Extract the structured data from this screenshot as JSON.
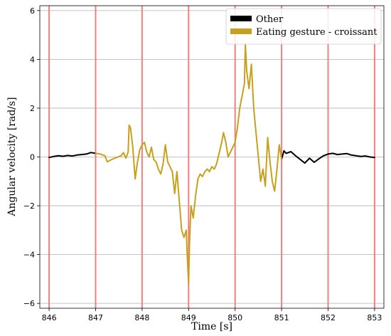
{
  "chart_data": {
    "type": "line",
    "title": "",
    "xlabel": "Time [s]",
    "ylabel": "Angular velocity [rad/s]",
    "xlim": [
      845.8,
      853.2
    ],
    "ylim": [
      -6.2,
      6.2
    ],
    "xticks": [
      846,
      847,
      848,
      849,
      850,
      851,
      852,
      853
    ],
    "yticks": [
      -6,
      -4,
      -2,
      0,
      2,
      4,
      6
    ],
    "xtick_labels": [
      "846",
      "847",
      "848",
      "849",
      "850",
      "851",
      "852",
      "853"
    ],
    "ytick_labels": [
      "−6",
      "−4",
      "−2",
      "0",
      "2",
      "4",
      "6"
    ],
    "grid": "horizontal",
    "legend_position": "top-right",
    "vertical_markers": [
      846,
      847,
      848,
      849,
      850,
      851,
      852,
      853
    ],
    "series": [
      {
        "name": "Other",
        "color": "#000000",
        "segments": [
          [
            [
              846.0,
              -0.02
            ],
            [
              846.1,
              0.02
            ],
            [
              846.2,
              0.05
            ],
            [
              846.3,
              0.03
            ],
            [
              846.4,
              0.06
            ],
            [
              846.5,
              0.04
            ],
            [
              846.6,
              0.08
            ],
            [
              846.7,
              0.1
            ],
            [
              846.8,
              0.12
            ],
            [
              846.9,
              0.18
            ],
            [
              847.0,
              0.15
            ]
          ],
          [
            [
              851.0,
              -0.1
            ],
            [
              851.05,
              0.25
            ],
            [
              851.1,
              0.15
            ],
            [
              851.2,
              0.22
            ],
            [
              851.3,
              0.05
            ],
            [
              851.4,
              -0.1
            ],
            [
              851.5,
              -0.25
            ],
            [
              851.6,
              -0.05
            ],
            [
              851.7,
              -0.22
            ],
            [
              851.8,
              -0.08
            ],
            [
              851.9,
              0.05
            ],
            [
              852.0,
              0.12
            ],
            [
              852.1,
              0.15
            ],
            [
              852.2,
              0.1
            ],
            [
              852.3,
              0.12
            ],
            [
              852.4,
              0.14
            ],
            [
              852.5,
              0.08
            ],
            [
              852.6,
              0.05
            ],
            [
              852.7,
              0.02
            ],
            [
              852.8,
              0.04
            ],
            [
              852.9,
              0.0
            ],
            [
              853.0,
              -0.02
            ]
          ]
        ]
      },
      {
        "name": "Eating gesture - croissant",
        "color": "#C8A020",
        "segments": [
          [
            [
              847.0,
              0.15
            ],
            [
              847.1,
              0.12
            ],
            [
              847.2,
              0.05
            ],
            [
              847.25,
              -0.2
            ],
            [
              847.35,
              -0.1
            ],
            [
              847.45,
              -0.02
            ],
            [
              847.55,
              0.05
            ],
            [
              847.6,
              0.18
            ],
            [
              847.65,
              -0.05
            ],
            [
              847.7,
              0.2
            ],
            [
              847.72,
              1.3
            ],
            [
              847.75,
              1.2
            ],
            [
              847.8,
              0.4
            ],
            [
              847.85,
              -0.9
            ],
            [
              847.9,
              -0.2
            ],
            [
              847.95,
              0.3
            ],
            [
              848.0,
              0.5
            ],
            [
              848.05,
              0.6
            ],
            [
              848.1,
              0.2
            ],
            [
              848.15,
              0.0
            ],
            [
              848.2,
              0.4
            ],
            [
              848.25,
              -0.1
            ],
            [
              848.3,
              -0.2
            ],
            [
              848.35,
              -0.5
            ],
            [
              848.4,
              -0.7
            ],
            [
              848.45,
              -0.3
            ],
            [
              848.5,
              0.5
            ],
            [
              848.55,
              -0.2
            ],
            [
              848.6,
              -0.4
            ],
            [
              848.65,
              -0.6
            ],
            [
              848.7,
              -1.5
            ],
            [
              848.75,
              -0.6
            ],
            [
              848.8,
              -1.8
            ],
            [
              848.85,
              -3.0
            ],
            [
              848.9,
              -3.3
            ],
            [
              848.95,
              -3.0
            ],
            [
              848.97,
              -4.0
            ],
            [
              849.0,
              -5.2
            ],
            [
              849.02,
              -3.5
            ],
            [
              849.05,
              -2.0
            ],
            [
              849.1,
              -2.5
            ],
            [
              849.15,
              -1.6
            ],
            [
              849.2,
              -0.9
            ],
            [
              849.25,
              -0.7
            ],
            [
              849.3,
              -0.8
            ],
            [
              849.35,
              -0.6
            ],
            [
              849.4,
              -0.5
            ],
            [
              849.45,
              -0.6
            ],
            [
              849.5,
              -0.4
            ],
            [
              849.55,
              -0.5
            ],
            [
              849.6,
              -0.3
            ],
            [
              849.65,
              0.1
            ],
            [
              849.7,
              0.5
            ],
            [
              849.75,
              1.0
            ],
            [
              849.8,
              0.6
            ],
            [
              849.85,
              0.0
            ],
            [
              849.9,
              0.2
            ],
            [
              849.95,
              0.4
            ],
            [
              850.0,
              0.6
            ],
            [
              850.05,
              1.2
            ],
            [
              850.1,
              2.0
            ],
            [
              850.15,
              2.5
            ],
            [
              850.2,
              3.0
            ],
            [
              850.22,
              4.6
            ],
            [
              850.25,
              3.5
            ],
            [
              850.3,
              2.8
            ],
            [
              850.35,
              3.8
            ],
            [
              850.4,
              2.0
            ],
            [
              850.45,
              1.0
            ],
            [
              850.5,
              0.0
            ],
            [
              850.55,
              -1.0
            ],
            [
              850.6,
              -0.5
            ],
            [
              850.65,
              -1.2
            ],
            [
              850.7,
              0.8
            ],
            [
              850.75,
              -0.2
            ],
            [
              850.8,
              -1.0
            ],
            [
              850.85,
              -1.4
            ],
            [
              850.9,
              -0.5
            ],
            [
              850.95,
              0.5
            ],
            [
              851.0,
              -0.1
            ]
          ]
        ]
      }
    ]
  }
}
